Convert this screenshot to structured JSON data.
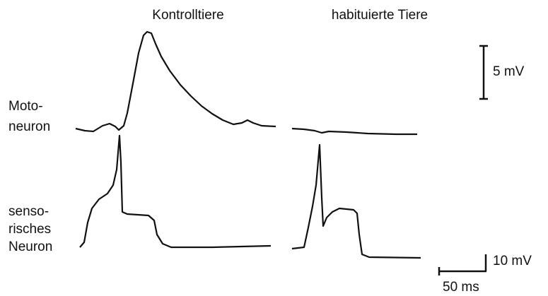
{
  "header": {
    "left": "Kontrolltiere",
    "right": "habituierte Tiere"
  },
  "labels": {
    "motoneuron": [
      "Moto-",
      "neuron"
    ],
    "sensory": [
      "senso-",
      "risches",
      "Neuron"
    ]
  },
  "scale_bars": {
    "upper": "5 mV",
    "lower_vertical": "10 mV",
    "lower_horizontal": "50 ms"
  }
}
